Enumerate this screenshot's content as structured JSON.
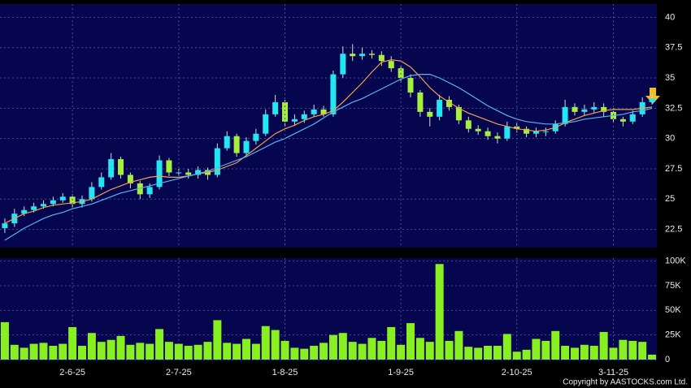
{
  "chart_data": [
    {
      "type": "candlestick",
      "up_color": "#22e6f2",
      "down_color": "#a6f03c",
      "wick_color": "#d8d8d8",
      "ylim": [
        21.0,
        41.1
      ],
      "yticks": [
        22.5,
        25,
        27.5,
        30,
        32.5,
        35,
        37.5,
        40
      ],
      "grid": true,
      "open": [
        22.6,
        23.0,
        23.8,
        24.1,
        24.4,
        24.6,
        24.9,
        25.2,
        24.6,
        25.0,
        26.0,
        26.8,
        28.3,
        27.0,
        26.3,
        25.4,
        26.0,
        28.2,
        27.2,
        27.2,
        27.0,
        27.4,
        27.0,
        29.2,
        30.2,
        28.8,
        29.8,
        30.4,
        32.0,
        33.0,
        31.4,
        31.6,
        32.0,
        32.4,
        32.0,
        35.3,
        37.0,
        36.8,
        37.0,
        36.9,
        36.4,
        35.8,
        35.0,
        33.8,
        32.2,
        31.8,
        33.2,
        32.6,
        31.5,
        30.8,
        30.6,
        30.2,
        30.0,
        31.0,
        30.8,
        30.4,
        30.6,
        30.6,
        31.2,
        32.6,
        32.2,
        32.4,
        32.6,
        32.2,
        31.6,
        31.4,
        32.0,
        33.0
      ],
      "high": [
        23.4,
        24.2,
        24.4,
        24.7,
        24.9,
        25.2,
        25.5,
        25.4,
        25.3,
        26.4,
        27.2,
        28.8,
        28.5,
        27.2,
        26.5,
        26.3,
        28.6,
        28.4,
        27.5,
        27.5,
        27.7,
        27.6,
        29.6,
        30.6,
        30.4,
        30.1,
        30.8,
        32.4,
        33.6,
        33.2,
        32.0,
        32.3,
        32.8,
        32.7,
        35.6,
        37.6,
        37.8,
        37.5,
        37.3,
        37.2,
        36.8,
        36.0,
        35.3,
        34.0,
        32.5,
        33.6,
        33.5,
        32.8,
        31.8,
        31.1,
        30.9,
        30.5,
        31.4,
        31.3,
        31.0,
        30.9,
        30.9,
        31.5,
        33.2,
        32.9,
        32.8,
        33.0,
        32.9,
        32.5,
        31.8,
        32.3,
        33.4,
        33.6
      ],
      "low": [
        22.2,
        22.7,
        23.6,
        23.9,
        24.2,
        24.4,
        24.7,
        24.2,
        24.3,
        24.8,
        25.8,
        26.6,
        26.7,
        25.9,
        25.0,
        25.1,
        25.8,
        26.9,
        26.9,
        26.7,
        26.7,
        26.6,
        26.8,
        29.0,
        28.5,
        28.6,
        29.5,
        30.2,
        31.8,
        31.0,
        31.1,
        31.3,
        31.8,
        31.8,
        31.8,
        35.0,
        36.4,
        36.5,
        36.6,
        36.0,
        35.5,
        34.6,
        33.4,
        31.8,
        31.0,
        31.5,
        32.3,
        31.2,
        30.5,
        30.3,
        29.9,
        29.6,
        29.8,
        30.5,
        30.1,
        30.1,
        30.2,
        30.4,
        31.0,
        31.9,
        31.9,
        32.1,
        31.8,
        31.3,
        31.0,
        31.2,
        31.8,
        32.8
      ],
      "close": [
        23.0,
        23.8,
        24.1,
        24.4,
        24.6,
        24.9,
        25.2,
        24.6,
        25.0,
        26.0,
        26.8,
        28.3,
        27.0,
        26.3,
        25.4,
        26.0,
        28.2,
        27.2,
        27.2,
        27.0,
        27.4,
        27.0,
        29.2,
        30.2,
        28.8,
        29.8,
        30.4,
        32.0,
        33.0,
        31.4,
        31.6,
        32.0,
        32.4,
        32.0,
        35.3,
        37.0,
        36.8,
        37.0,
        36.9,
        36.4,
        35.8,
        35.0,
        33.8,
        32.2,
        31.8,
        33.2,
        32.6,
        31.5,
        30.8,
        30.6,
        30.2,
        30.0,
        31.0,
        30.8,
        30.4,
        30.6,
        30.6,
        31.2,
        32.6,
        32.2,
        32.4,
        32.6,
        32.2,
        31.6,
        31.4,
        32.0,
        33.0,
        33.3
      ],
      "series": [
        {
          "color": "#f0a050",
          "values": [
            23.0,
            23.4,
            23.8,
            24.0,
            24.3,
            24.5,
            24.6,
            24.7,
            24.8,
            25.0,
            25.4,
            25.8,
            26.1,
            26.4,
            26.6,
            26.8,
            26.9,
            26.8,
            26.8,
            26.9,
            27.1,
            27.2,
            27.4,
            27.7,
            28.0,
            28.6,
            29.2,
            29.8,
            30.4,
            30.8,
            31.1,
            31.5,
            31.8,
            32.0,
            32.3,
            33.0,
            33.8,
            34.6,
            35.5,
            36.3,
            36.5,
            36.4,
            35.9,
            35.1,
            34.2,
            33.5,
            33.0,
            32.5,
            32.1,
            31.8,
            31.5,
            31.2,
            31.0,
            30.8,
            30.7,
            30.6,
            30.7,
            30.9,
            31.3,
            31.6,
            31.9,
            32.1,
            32.3,
            32.4,
            32.4,
            32.4,
            32.5,
            32.6
          ]
        },
        {
          "color": "#5ab4f0",
          "values": [
            21.6,
            22.1,
            22.6,
            23.0,
            23.4,
            23.7,
            23.9,
            24.2,
            24.4,
            24.6,
            24.9,
            25.2,
            25.5,
            25.7,
            25.9,
            26.1,
            26.3,
            26.5,
            26.7,
            26.9,
            27.1,
            27.3,
            27.6,
            27.9,
            28.2,
            28.5,
            28.9,
            29.3,
            29.7,
            30.0,
            30.4,
            30.8,
            31.2,
            31.7,
            32.2,
            32.6,
            33.0,
            33.3,
            33.7,
            34.1,
            34.5,
            34.9,
            35.2,
            35.3,
            35.3,
            35.0,
            34.6,
            34.2,
            33.7,
            33.2,
            32.7,
            32.3,
            31.9,
            31.6,
            31.4,
            31.3,
            31.2,
            31.2,
            31.3,
            31.4,
            31.6,
            31.7,
            31.8,
            31.9,
            32.0,
            32.2,
            32.3,
            32.5
          ]
        }
      ]
    },
    {
      "type": "bar",
      "color": "#88f020",
      "ylim": [
        0,
        103000
      ],
      "yticks": [
        0,
        {
          "value": 25000,
          "label": "25K"
        },
        {
          "value": 50000,
          "label": "50K"
        },
        {
          "value": 75000,
          "label": "75K"
        },
        {
          "value": 100000,
          "label": "100K"
        }
      ],
      "grid": true,
      "categories": [
        null,
        null,
        null,
        null,
        null,
        null,
        null,
        "2-6-25",
        null,
        null,
        null,
        null,
        null,
        null,
        null,
        null,
        null,
        null,
        "2-7-25",
        null,
        null,
        null,
        null,
        null,
        null,
        null,
        null,
        null,
        null,
        "1-8-25",
        null,
        null,
        null,
        null,
        null,
        null,
        null,
        null,
        null,
        null,
        null,
        "1-9-25",
        null,
        null,
        null,
        null,
        null,
        null,
        null,
        null,
        null,
        null,
        null,
        "2-10-25",
        null,
        null,
        null,
        null,
        null,
        null,
        null,
        null,
        null,
        "3-11-25",
        null,
        null,
        null,
        null
      ],
      "values": [
        38000,
        15000,
        12000,
        16000,
        17000,
        14000,
        16000,
        33000,
        14000,
        27000,
        18000,
        20000,
        24000,
        15000,
        17000,
        16000,
        31000,
        18000,
        16000,
        14000,
        15000,
        18000,
        40000,
        17000,
        16000,
        21000,
        16000,
        34000,
        30000,
        19000,
        12000,
        11000,
        14000,
        17000,
        25000,
        27000,
        18000,
        16000,
        22000,
        19000,
        33000,
        15000,
        37000,
        22000,
        18000,
        97000,
        19000,
        29000,
        13000,
        12000,
        14000,
        14000,
        26000,
        8000,
        10000,
        21000,
        19000,
        29000,
        14000,
        12000,
        15000,
        14000,
        28000,
        12000,
        20000,
        19000,
        18000,
        5000
      ]
    }
  ],
  "footer": "Copyright by AASTOCKS.com Ltd."
}
